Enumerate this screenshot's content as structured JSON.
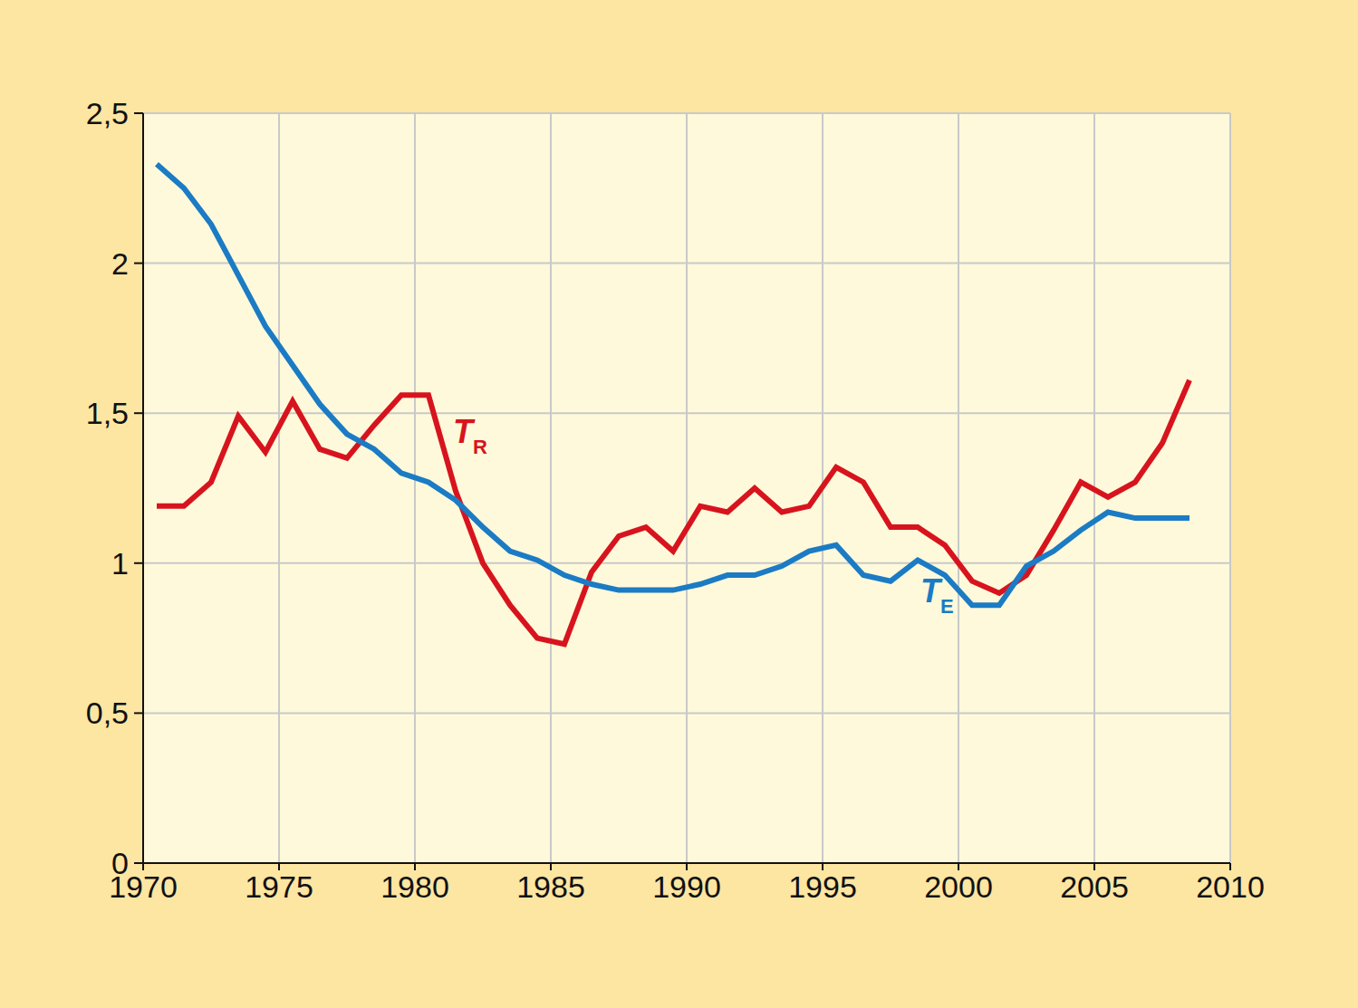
{
  "chart_data": {
    "type": "line",
    "x": [
      1970.5,
      1971.5,
      1972.5,
      1973.5,
      1974.5,
      1975.5,
      1976.5,
      1977.5,
      1978.5,
      1979.5,
      1980.5,
      1981.5,
      1982.5,
      1983.5,
      1984.5,
      1985.5,
      1986.5,
      1987.5,
      1988.5,
      1989.5,
      1990.5,
      1991.5,
      1992.5,
      1993.5,
      1994.5,
      1995.5,
      1996.5,
      1997.5,
      1998.5,
      1999.5,
      2000.5,
      2001.5,
      2002.5,
      2003.5,
      2004.5,
      2005.5,
      2006.5,
      2007.5,
      2008.5
    ],
    "series": [
      {
        "name": "TR",
        "color": "#d7141e",
        "values": [
          1.19,
          1.19,
          1.27,
          1.49,
          1.37,
          1.54,
          1.38,
          1.35,
          1.46,
          1.56,
          1.56,
          1.24,
          1.0,
          0.86,
          0.75,
          0.73,
          0.97,
          1.09,
          1.12,
          1.04,
          1.19,
          1.17,
          1.25,
          1.17,
          1.19,
          1.32,
          1.27,
          1.12,
          1.12,
          1.06,
          0.94,
          0.9,
          0.96,
          1.11,
          1.27,
          1.22,
          1.27,
          1.4,
          1.61
        ]
      },
      {
        "name": "TE",
        "color": "#1b7bc4",
        "values": [
          2.33,
          2.25,
          2.13,
          1.96,
          1.79,
          1.66,
          1.53,
          1.43,
          1.38,
          1.3,
          1.27,
          1.21,
          1.12,
          1.04,
          1.01,
          0.96,
          0.93,
          0.91,
          0.91,
          0.91,
          0.93,
          0.96,
          0.96,
          0.99,
          1.04,
          1.06,
          0.96,
          0.94,
          1.01,
          0.96,
          0.86,
          0.86,
          0.99,
          1.04,
          1.11,
          1.17,
          1.15,
          1.15,
          1.15
        ]
      }
    ],
    "annotations": [
      {
        "text": "T",
        "subscript": "R",
        "x": 1981.4,
        "y": 1.4,
        "color": "#d7141e"
      },
      {
        "text": "T",
        "subscript": "E",
        "x": 1998.6,
        "y": 0.87,
        "color": "#1b7bc4"
      }
    ],
    "xlim": [
      1970,
      2010
    ],
    "xticks": [
      1970,
      1975,
      1980,
      1985,
      1990,
      1995,
      2000,
      2005,
      2010
    ],
    "ylim": [
      0,
      2.5
    ],
    "yticks": [
      0,
      {
        "value": 0.5,
        "label": "0,5"
      },
      1,
      {
        "value": 1.5,
        "label": "1,5"
      },
      2,
      {
        "value": 2.5,
        "label": "2,5"
      }
    ],
    "grid": true
  }
}
